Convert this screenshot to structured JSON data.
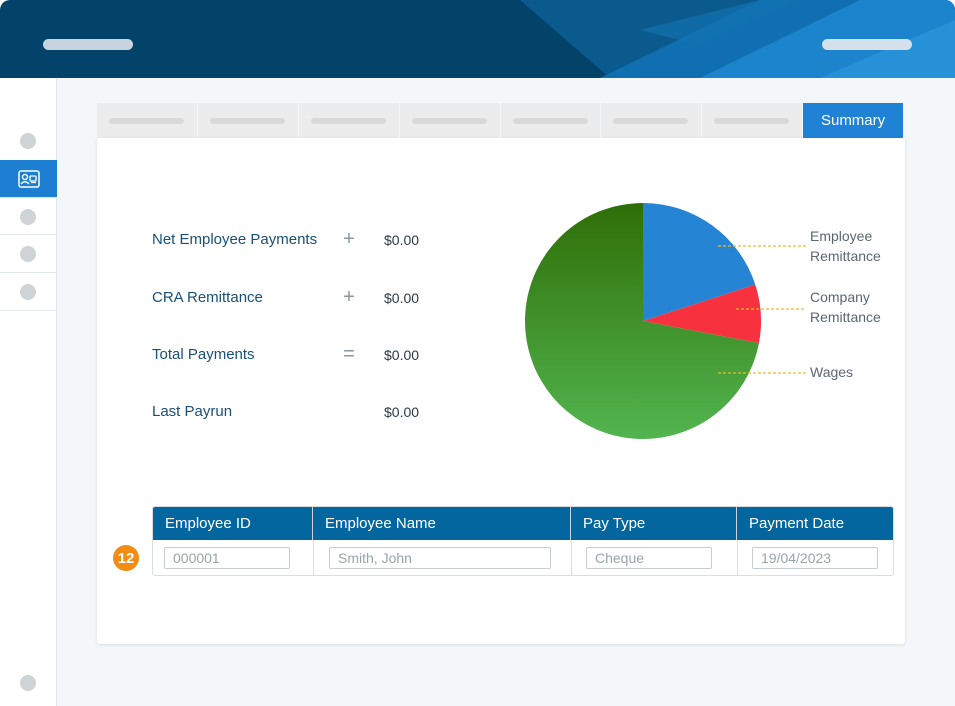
{
  "tabs": {
    "active_label": "Summary"
  },
  "summary": {
    "rows": [
      {
        "label": "Net Employee Payments",
        "op": "+",
        "value": "$0.00"
      },
      {
        "label": "CRA Remittance",
        "op": "+",
        "value": "$0.00"
      },
      {
        "label": "Total Payments",
        "op": "=",
        "value": "$0.00"
      },
      {
        "label": "Last Payrun",
        "op": "",
        "value": "$0.00"
      }
    ]
  },
  "chart_data": {
    "type": "pie",
    "title": "",
    "slices": [
      {
        "label": "Employee Remittance",
        "value": 20,
        "color": "#2584d4"
      },
      {
        "label": "Company Remittance",
        "value": 8,
        "color": "#f7313d"
      },
      {
        "label": "Wages",
        "value": 72,
        "color": "#4aa847"
      }
    ],
    "legend": {
      "employee_line1": "Employee",
      "employee_line2": "Remittance",
      "company_line1": "Company",
      "company_line2": "Remittance",
      "wages": "Wages"
    }
  },
  "step_badge": "12",
  "table": {
    "headers": [
      "Employee ID",
      "Employee Name",
      "Pay Type",
      "Payment Date"
    ],
    "row": [
      "000001",
      "Smith, John",
      "Cheque",
      "19/04/2023"
    ]
  },
  "colors": {
    "header_bg": "#044369",
    "accent": "#2082d4",
    "table_header": "#04669e",
    "badge": "#f38c12"
  }
}
